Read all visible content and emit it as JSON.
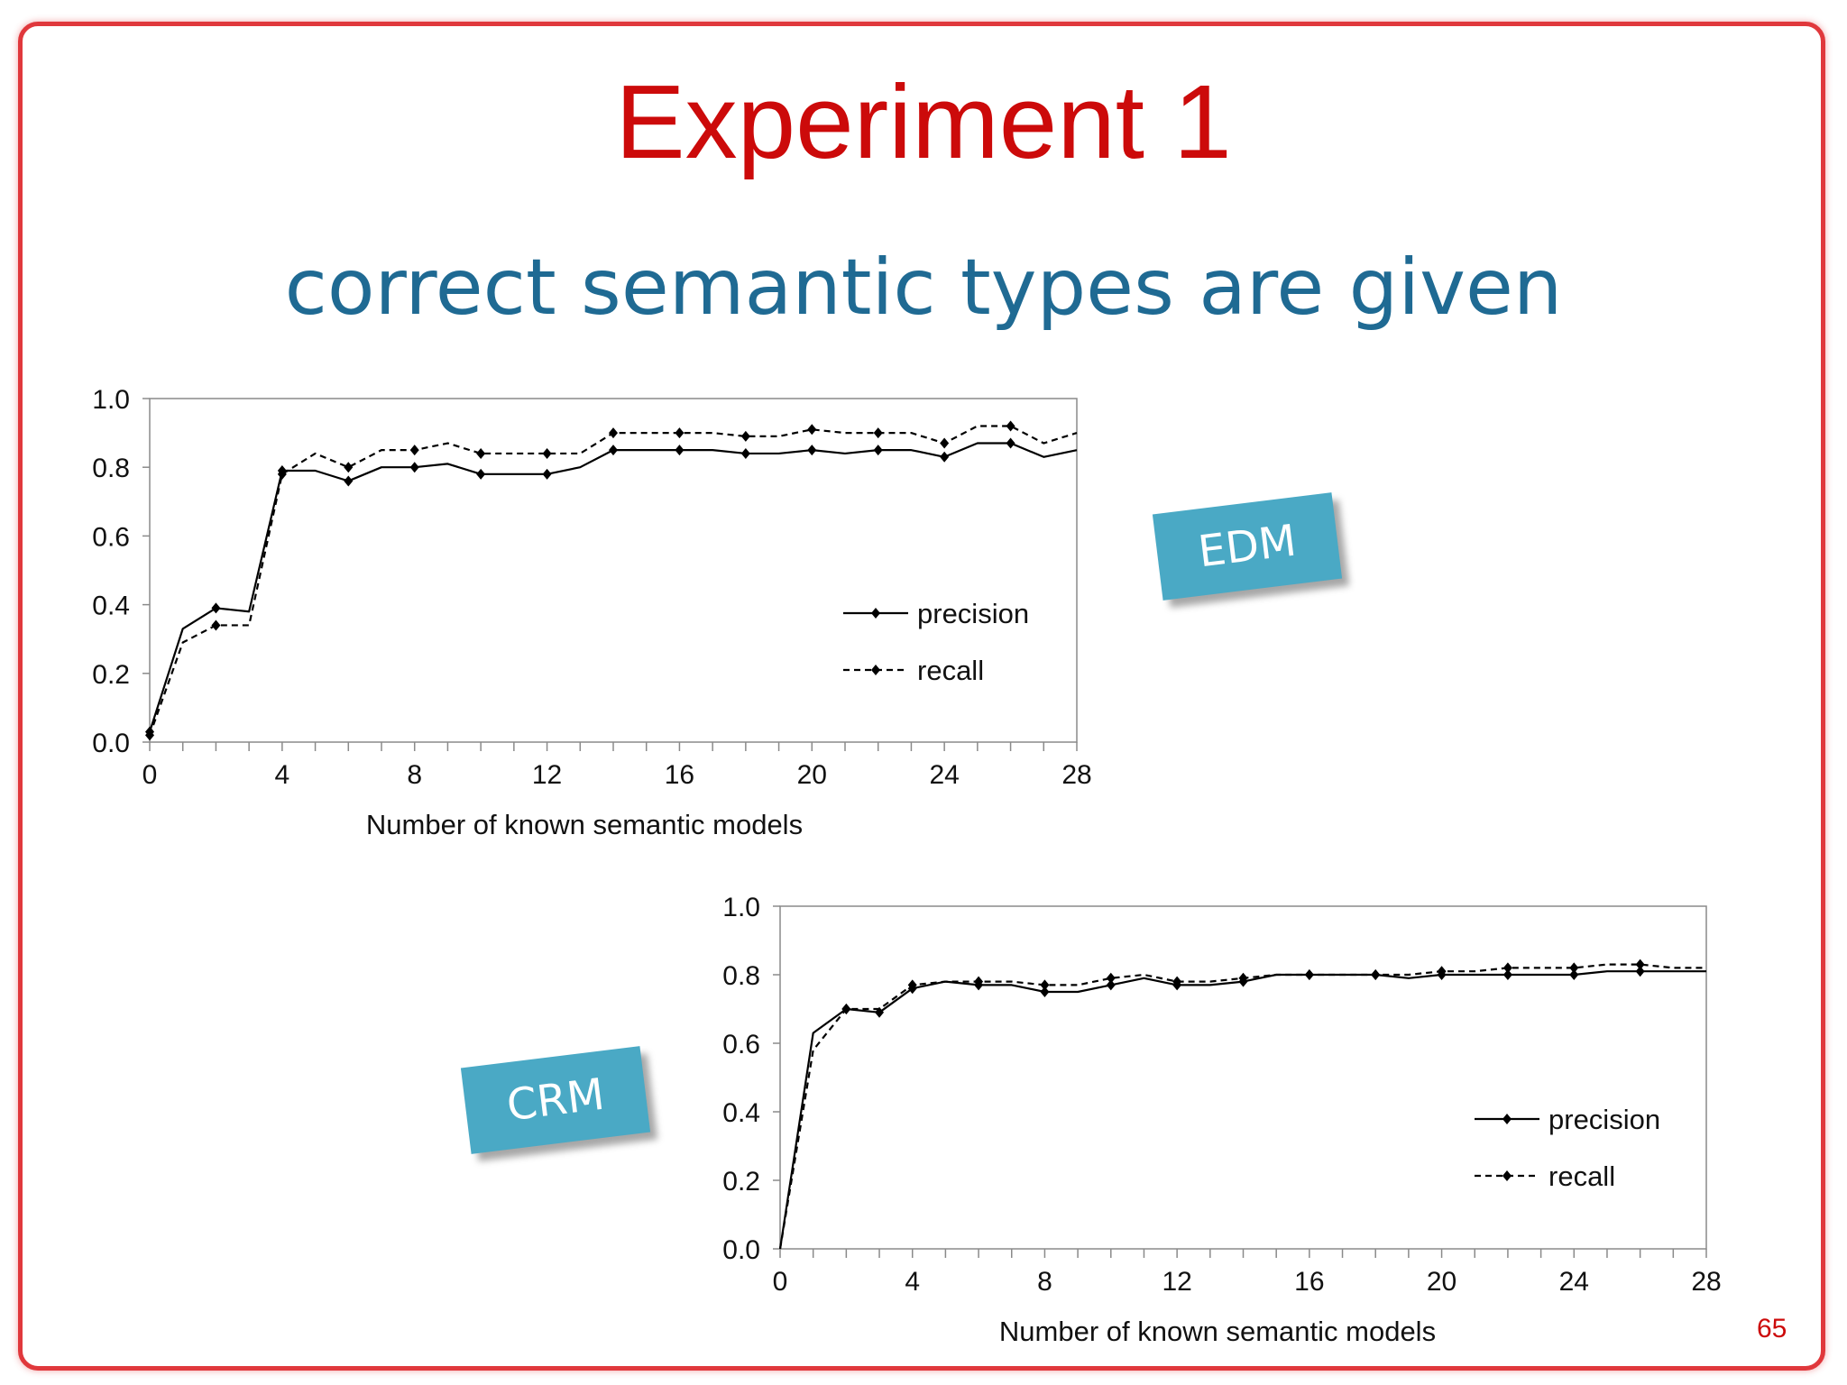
{
  "slide": {
    "title": "Experiment 1",
    "subtitle": "correct semantic types are given",
    "page_number": "65",
    "tags": {
      "edm": "EDM",
      "crm": "CRM"
    },
    "colors": {
      "title": "#cc0a0a",
      "subtitle": "#1f6a93",
      "tag": "#4aa9c5",
      "frame": "#e0383c"
    }
  },
  "chart_data": [
    {
      "type": "line",
      "title": "",
      "xlabel": "Number of known semantic models",
      "ylabel": "",
      "xlim": [
        0,
        28
      ],
      "ylim": [
        0,
        1
      ],
      "xticks": [
        0,
        4,
        8,
        12,
        16,
        20,
        24,
        28
      ],
      "xtick_labels": [
        "0",
        "4",
        "8",
        "12",
        "16",
        "20",
        "24",
        "28"
      ],
      "yticks": [
        0,
        0.2,
        0.4,
        0.6,
        0.8,
        1.0
      ],
      "ytick_labels": [
        "0.0",
        "0.2",
        "0.4",
        "0.6",
        "0.8",
        "1.0"
      ],
      "legend_position": "center-right",
      "grid": false,
      "x": [
        0,
        1,
        2,
        3,
        4,
        5,
        6,
        7,
        8,
        9,
        10,
        11,
        12,
        13,
        14,
        15,
        16,
        17,
        18,
        19,
        20,
        21,
        22,
        23,
        24,
        25,
        26,
        27,
        28
      ],
      "series": [
        {
          "name": "precision",
          "style": "solid",
          "values": [
            0.03,
            0.33,
            0.39,
            0.38,
            0.79,
            0.79,
            0.76,
            0.8,
            0.8,
            0.81,
            0.78,
            0.78,
            0.78,
            0.8,
            0.85,
            0.85,
            0.85,
            0.85,
            0.84,
            0.84,
            0.85,
            0.84,
            0.85,
            0.85,
            0.83,
            0.87,
            0.87,
            0.83,
            0.85
          ],
          "markers": [
            0,
            2,
            4,
            6,
            8,
            10,
            12,
            14,
            16,
            18,
            20,
            22,
            24,
            26
          ]
        },
        {
          "name": "recall",
          "style": "dashed",
          "values": [
            0.02,
            0.29,
            0.34,
            0.34,
            0.78,
            0.84,
            0.8,
            0.85,
            0.85,
            0.87,
            0.84,
            0.84,
            0.84,
            0.84,
            0.9,
            0.9,
            0.9,
            0.9,
            0.89,
            0.89,
            0.91,
            0.9,
            0.9,
            0.9,
            0.87,
            0.92,
            0.92,
            0.87,
            0.9
          ],
          "markers": [
            0,
            2,
            4,
            6,
            8,
            10,
            12,
            14,
            16,
            18,
            20,
            22,
            24,
            26
          ]
        }
      ]
    },
    {
      "type": "line",
      "title": "",
      "xlabel": "Number of known semantic models",
      "ylabel": "",
      "xlim": [
        0,
        28
      ],
      "ylim": [
        0,
        1
      ],
      "xticks": [
        0,
        4,
        8,
        12,
        16,
        20,
        24,
        28
      ],
      "xtick_labels": [
        "0",
        "4",
        "8",
        "12",
        "16",
        "20",
        "24",
        "28"
      ],
      "yticks": [
        0,
        0.2,
        0.4,
        0.6,
        0.8,
        1.0
      ],
      "ytick_labels": [
        "0.0",
        "0.2",
        "0.4",
        "0.6",
        "0.8",
        "1.0"
      ],
      "legend_position": "lower-right",
      "grid": false,
      "x": [
        0,
        1,
        2,
        3,
        4,
        5,
        6,
        7,
        8,
        9,
        10,
        11,
        12,
        13,
        14,
        15,
        16,
        17,
        18,
        19,
        20,
        21,
        22,
        23,
        24,
        25,
        26,
        27,
        28
      ],
      "series": [
        {
          "name": "precision",
          "style": "solid",
          "values": [
            0.0,
            0.63,
            0.7,
            0.69,
            0.76,
            0.78,
            0.77,
            0.77,
            0.75,
            0.75,
            0.77,
            0.79,
            0.77,
            0.77,
            0.78,
            0.8,
            0.8,
            0.8,
            0.8,
            0.79,
            0.8,
            0.8,
            0.8,
            0.8,
            0.8,
            0.81,
            0.81,
            0.81,
            0.81
          ],
          "markers": [
            2,
            3,
            4,
            6,
            8,
            10,
            12,
            14,
            16,
            18,
            20,
            22,
            24,
            26
          ]
        },
        {
          "name": "recall",
          "style": "dashed",
          "values": [
            0.0,
            0.58,
            0.7,
            0.7,
            0.77,
            0.78,
            0.78,
            0.78,
            0.77,
            0.77,
            0.79,
            0.8,
            0.78,
            0.78,
            0.79,
            0.8,
            0.8,
            0.8,
            0.8,
            0.8,
            0.81,
            0.81,
            0.82,
            0.82,
            0.82,
            0.83,
            0.83,
            0.82,
            0.82
          ],
          "markers": [
            2,
            4,
            6,
            8,
            10,
            12,
            14,
            16,
            18,
            20,
            22,
            24,
            26
          ]
        }
      ]
    }
  ]
}
